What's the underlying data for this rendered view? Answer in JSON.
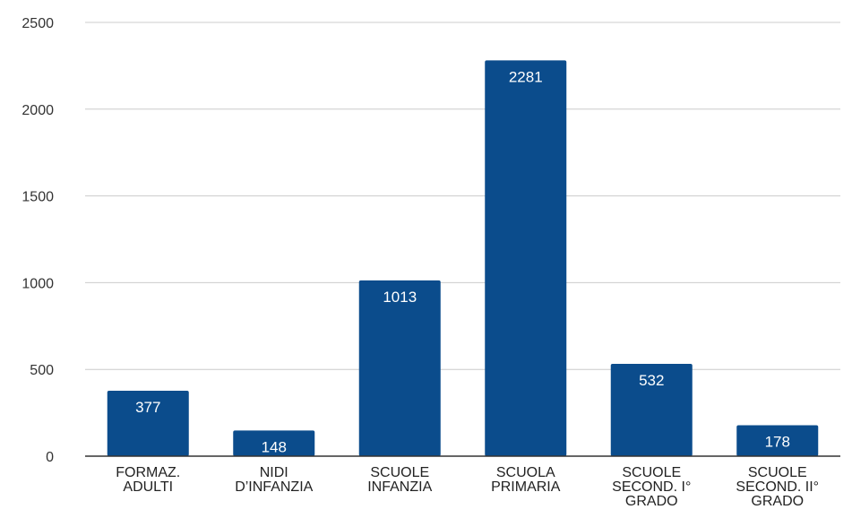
{
  "chart_data": {
    "type": "bar",
    "title": "",
    "xlabel": "",
    "ylabel": "",
    "categories": [
      "FORMAZ. ADULTI",
      "NIDI D’INFANZIA",
      "SCUOLE INFANZIA",
      "SCUOLA PRIMARIA",
      "SCUOLE SECOND. I° GRADO",
      "SCUOLE SECOND. II° GRADO"
    ],
    "category_lines": [
      [
        "FORMAZ.",
        "ADULTI"
      ],
      [
        "NIDI",
        "D’INFANZIA"
      ],
      [
        "SCUOLE",
        "INFANZIA"
      ],
      [
        "SCUOLA",
        "PRIMARIA"
      ],
      [
        "SCUOLE",
        "SECOND. I°",
        "GRADO"
      ],
      [
        "SCUOLE",
        "SECOND. II°",
        "GRADO"
      ]
    ],
    "values": [
      377,
      148,
      1013,
      2281,
      532,
      178
    ],
    "data_labels": [
      "377",
      "148",
      "1013",
      "2281",
      "532",
      "178"
    ],
    "ylim": [
      0,
      2500
    ],
    "yticks": [
      "0",
      "500",
      "1000",
      "1500",
      "2000",
      "2500"
    ],
    "grid": true,
    "legend": "none",
    "bar_color": "#0b4c8c"
  }
}
